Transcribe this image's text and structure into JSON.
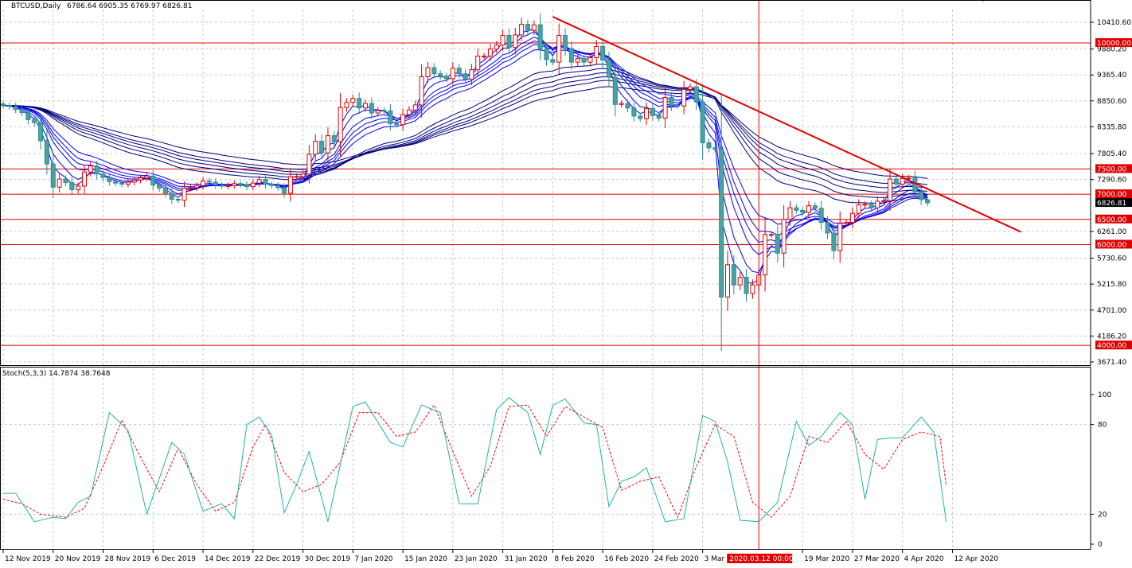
{
  "chart_data": [
    {
      "type": "candlestick",
      "symbol_label": "BTCUSD,Daily",
      "ohlc_label": "6786.64 6905.35 6769.97 6826.81",
      "current_price": 6826.81,
      "current_price_label": "6826.81",
      "ylim": [
        3671.4,
        10600
      ],
      "y_ticks": [
        {
          "v": 10410.6,
          "label": "10410.60"
        },
        {
          "v": 9880.2,
          "label": "9880.20"
        },
        {
          "v": 9365.4,
          "label": "9365.40"
        },
        {
          "v": 8850.6,
          "label": "8850.60"
        },
        {
          "v": 8335.8,
          "label": "8335.80"
        },
        {
          "v": 7805.4,
          "label": "7805.40"
        },
        {
          "v": 7290.6,
          "label": "7290.60"
        },
        {
          "v": 6261.0,
          "label": "6261.00"
        },
        {
          "v": 5730.6,
          "label": "5730.60"
        },
        {
          "v": 5215.8,
          "label": "5215.80"
        },
        {
          "v": 4701.0,
          "label": "4701.00"
        },
        {
          "v": 4186.2,
          "label": "4186.20"
        },
        {
          "v": 3671.4,
          "label": "3671.40"
        }
      ],
      "levels": [
        {
          "v": 10000,
          "label": "10000.00"
        },
        {
          "v": 7500,
          "label": "7500.00"
        },
        {
          "v": 7000,
          "label": "7000.00"
        },
        {
          "v": 6500,
          "label": "6500.00"
        },
        {
          "v": 6000,
          "label": "6000.00"
        },
        {
          "v": 4000,
          "label": "4000.00"
        }
      ],
      "trendline": {
        "from": {
          "date": "2020-02-08",
          "price": 10520
        },
        "to": {
          "date": "2020-04-23",
          "price": 6250
        }
      },
      "crosshair": {
        "date": "2020-03-12",
        "label": "2020.03.12 00:00"
      },
      "x_ticks": [
        {
          "date": "2019-11-12",
          "label": "12 Nov 2019"
        },
        {
          "date": "2019-11-20",
          "label": "20 Nov 2019"
        },
        {
          "date": "2019-11-28",
          "label": "28 Nov 2019"
        },
        {
          "date": "2019-12-06",
          "label": "6 Dec 2019"
        },
        {
          "date": "2019-12-14",
          "label": "14 Dec 2019"
        },
        {
          "date": "2019-12-22",
          "label": "22 Dec 2019"
        },
        {
          "date": "2019-12-30",
          "label": "30 Dec 2019"
        },
        {
          "date": "2020-01-07",
          "label": "7 Jan 2020"
        },
        {
          "date": "2020-01-15",
          "label": "15 Jan 2020"
        },
        {
          "date": "2020-01-23",
          "label": "23 Jan 2020"
        },
        {
          "date": "2020-01-31",
          "label": "31 Jan 2020"
        },
        {
          "date": "2020-02-08",
          "label": "8 Feb 2020"
        },
        {
          "date": "2020-02-16",
          "label": "16 Feb 2020"
        },
        {
          "date": "2020-02-24",
          "label": "24 Feb 2020"
        },
        {
          "date": "2020-03-03",
          "label": "3 Mar 2"
        },
        {
          "date": "2020-03-19",
          "label": "19 Mar 2020"
        },
        {
          "date": "2020-03-27",
          "label": "27 Mar 2020"
        },
        {
          "date": "2020-04-04",
          "label": "4 Apr 2020"
        },
        {
          "date": "2020-04-12",
          "label": "12 Apr 2020"
        }
      ],
      "first_date": "2019-11-12",
      "closes": [
        8760,
        8740,
        8680,
        8620,
        8480,
        8420,
        8060,
        7600,
        7140,
        7300,
        7230,
        7090,
        7160,
        7440,
        7560,
        7400,
        7330,
        7250,
        7220,
        7200,
        7240,
        7280,
        7320,
        7360,
        7180,
        7120,
        7020,
        6900,
        6880,
        7120,
        7130,
        7170,
        7260,
        7240,
        7180,
        7160,
        7170,
        7210,
        7190,
        7150,
        7220,
        7290,
        7200,
        7170,
        7130,
        7020,
        7350,
        7350,
        7400,
        7790,
        8050,
        7820,
        8160,
        8040,
        8720,
        8820,
        8900,
        8710,
        8800,
        8610,
        8660,
        8650,
        8400,
        8380,
        8580,
        8670,
        8770,
        9330,
        9510,
        9390,
        9340,
        9290,
        9500,
        9390,
        9280,
        9470,
        9740,
        9740,
        9880,
        9960,
        10150,
        9910,
        10160,
        10370,
        10250,
        10360,
        9880,
        9670,
        9620,
        10150,
        9890,
        9620,
        9690,
        9620,
        9710,
        9930,
        9660,
        9320,
        8780,
        8800,
        8710,
        8550,
        8500,
        8700,
        8560,
        8510,
        8920,
        8760,
        8750,
        9080,
        9130,
        8830,
        8020,
        7920,
        7890,
        4960,
        5600,
        5200,
        5350,
        5030,
        5200,
        5400,
        6200,
        6200,
        5830,
        6500,
        6730,
        6680,
        6640,
        6770,
        6720,
        6440,
        6230,
        5880,
        6420,
        6440,
        6620,
        6790,
        6800,
        6730,
        6860,
        6870,
        7300,
        7200,
        7310,
        7320,
        7050,
        6890,
        6830
      ],
      "ema_periods": [
        3,
        5,
        8,
        10,
        12,
        15,
        30,
        35,
        40,
        45,
        50,
        60
      ],
      "ema_colors": [
        "#0000ff",
        "#0000ff",
        "#0000ff",
        "#0000ff",
        "#0000ff",
        "#0000ff",
        "#000080",
        "#000080",
        "#000080",
        "#000080",
        "#000080",
        "#000080"
      ]
    },
    {
      "type": "line",
      "name": "Stoch(5,3,3) 14.7874 38.7648",
      "ylim": [
        0,
        100
      ],
      "y_ticks": [
        {
          "v": 100,
          "label": "100"
        },
        {
          "v": 80,
          "label": "80"
        },
        {
          "v": 20,
          "label": "20"
        },
        {
          "v": 0,
          "label": "0"
        }
      ],
      "k_color": "#20b2aa",
      "d_color": "#ff0000",
      "k_points": [
        {
          "date": "2019-11-12",
          "v": 34
        },
        {
          "date": "2019-11-14",
          "v": 34
        },
        {
          "date": "2019-11-17",
          "v": 15
        },
        {
          "date": "2019-11-20",
          "v": 18
        },
        {
          "date": "2019-11-22",
          "v": 17
        },
        {
          "date": "2019-11-24",
          "v": 28
        },
        {
          "date": "2019-11-26",
          "v": 32
        },
        {
          "date": "2019-11-29",
          "v": 88
        },
        {
          "date": "2019-12-02",
          "v": 76
        },
        {
          "date": "2019-12-05",
          "v": 20
        },
        {
          "date": "2019-12-09",
          "v": 68
        },
        {
          "date": "2019-12-11",
          "v": 60
        },
        {
          "date": "2019-12-14",
          "v": 22
        },
        {
          "date": "2019-12-17",
          "v": 27
        },
        {
          "date": "2019-12-19",
          "v": 17
        },
        {
          "date": "2019-12-21",
          "v": 80
        },
        {
          "date": "2019-12-23",
          "v": 85
        },
        {
          "date": "2019-12-25",
          "v": 73
        },
        {
          "date": "2019-12-27",
          "v": 21
        },
        {
          "date": "2019-12-29",
          "v": 40
        },
        {
          "date": "2019-12-31",
          "v": 62
        },
        {
          "date": "2020-01-03",
          "v": 15
        },
        {
          "date": "2020-01-07",
          "v": 92
        },
        {
          "date": "2020-01-09",
          "v": 95
        },
        {
          "date": "2020-01-13",
          "v": 68
        },
        {
          "date": "2020-01-15",
          "v": 65
        },
        {
          "date": "2020-01-18",
          "v": 93
        },
        {
          "date": "2020-01-21",
          "v": 88
        },
        {
          "date": "2020-01-24",
          "v": 27
        },
        {
          "date": "2020-01-27",
          "v": 27
        },
        {
          "date": "2020-01-30",
          "v": 90
        },
        {
          "date": "2020-02-01",
          "v": 98
        },
        {
          "date": "2020-02-04",
          "v": 88
        },
        {
          "date": "2020-02-06",
          "v": 60
        },
        {
          "date": "2020-02-08",
          "v": 93
        },
        {
          "date": "2020-02-10",
          "v": 97
        },
        {
          "date": "2020-02-13",
          "v": 81
        },
        {
          "date": "2020-02-15",
          "v": 80
        },
        {
          "date": "2020-02-17",
          "v": 25
        },
        {
          "date": "2020-02-19",
          "v": 42
        },
        {
          "date": "2020-02-21",
          "v": 45
        },
        {
          "date": "2020-02-23",
          "v": 51
        },
        {
          "date": "2020-02-26",
          "v": 15
        },
        {
          "date": "2020-02-29",
          "v": 17
        },
        {
          "date": "2020-03-03",
          "v": 86
        },
        {
          "date": "2020-03-05",
          "v": 82
        },
        {
          "date": "2020-03-07",
          "v": 55
        },
        {
          "date": "2020-03-09",
          "v": 16
        },
        {
          "date": "2020-03-12",
          "v": 15
        },
        {
          "date": "2020-03-15",
          "v": 28
        },
        {
          "date": "2020-03-18",
          "v": 82
        },
        {
          "date": "2020-03-20",
          "v": 66
        },
        {
          "date": "2020-03-22",
          "v": 72
        },
        {
          "date": "2020-03-25",
          "v": 88
        },
        {
          "date": "2020-03-27",
          "v": 80
        },
        {
          "date": "2020-03-29",
          "v": 30
        },
        {
          "date": "2020-03-31",
          "v": 70
        },
        {
          "date": "2020-04-02",
          "v": 71
        },
        {
          "date": "2020-04-04",
          "v": 71
        },
        {
          "date": "2020-04-07",
          "v": 85
        },
        {
          "date": "2020-04-09",
          "v": 75
        },
        {
          "date": "2020-04-11",
          "v": 14.7874
        }
      ],
      "d_points": [
        {
          "date": "2019-11-12",
          "v": 30
        },
        {
          "date": "2019-11-15",
          "v": 27
        },
        {
          "date": "2019-11-18",
          "v": 20
        },
        {
          "date": "2019-11-22",
          "v": 18
        },
        {
          "date": "2019-11-25",
          "v": 24
        },
        {
          "date": "2019-11-28",
          "v": 52
        },
        {
          "date": "2019-12-01",
          "v": 83
        },
        {
          "date": "2019-12-04",
          "v": 58
        },
        {
          "date": "2019-12-07",
          "v": 35
        },
        {
          "date": "2019-12-10",
          "v": 64
        },
        {
          "date": "2019-12-13",
          "v": 40
        },
        {
          "date": "2019-12-16",
          "v": 22
        },
        {
          "date": "2019-12-19",
          "v": 28
        },
        {
          "date": "2019-12-22",
          "v": 65
        },
        {
          "date": "2019-12-24",
          "v": 80
        },
        {
          "date": "2019-12-27",
          "v": 48
        },
        {
          "date": "2019-12-30",
          "v": 35
        },
        {
          "date": "2020-01-02",
          "v": 40
        },
        {
          "date": "2020-01-05",
          "v": 55
        },
        {
          "date": "2020-01-08",
          "v": 88
        },
        {
          "date": "2020-01-11",
          "v": 88
        },
        {
          "date": "2020-01-14",
          "v": 72
        },
        {
          "date": "2020-01-17",
          "v": 75
        },
        {
          "date": "2020-01-20",
          "v": 93
        },
        {
          "date": "2020-01-23",
          "v": 62
        },
        {
          "date": "2020-01-26",
          "v": 32
        },
        {
          "date": "2020-01-29",
          "v": 52
        },
        {
          "date": "2020-02-01",
          "v": 92
        },
        {
          "date": "2020-02-04",
          "v": 93
        },
        {
          "date": "2020-02-07",
          "v": 72
        },
        {
          "date": "2020-02-10",
          "v": 92
        },
        {
          "date": "2020-02-13",
          "v": 85
        },
        {
          "date": "2020-02-16",
          "v": 78
        },
        {
          "date": "2020-02-19",
          "v": 36
        },
        {
          "date": "2020-02-22",
          "v": 42
        },
        {
          "date": "2020-02-25",
          "v": 45
        },
        {
          "date": "2020-02-28",
          "v": 18
        },
        {
          "date": "2020-03-02",
          "v": 52
        },
        {
          "date": "2020-03-05",
          "v": 80
        },
        {
          "date": "2020-03-08",
          "v": 72
        },
        {
          "date": "2020-03-11",
          "v": 28
        },
        {
          "date": "2020-03-14",
          "v": 18
        },
        {
          "date": "2020-03-17",
          "v": 32
        },
        {
          "date": "2020-03-20",
          "v": 72
        },
        {
          "date": "2020-03-23",
          "v": 68
        },
        {
          "date": "2020-03-26",
          "v": 82
        },
        {
          "date": "2020-03-29",
          "v": 60
        },
        {
          "date": "2020-04-01",
          "v": 50
        },
        {
          "date": "2020-04-04",
          "v": 70
        },
        {
          "date": "2020-04-07",
          "v": 75
        },
        {
          "date": "2020-04-10",
          "v": 72
        },
        {
          "date": "2020-04-11",
          "v": 38.7648
        }
      ]
    }
  ]
}
